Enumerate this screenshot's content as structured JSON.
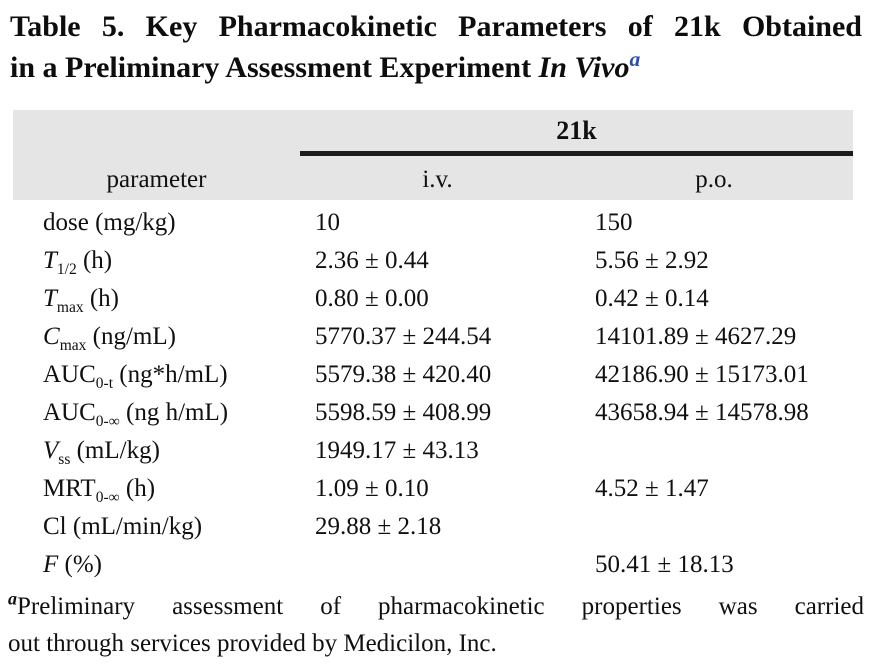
{
  "title": {
    "line1": "Table 5. Key Pharmacokinetic Parameters of 21k Obtained",
    "line2_plain": "in a Preliminary Assessment Experiment ",
    "line2_italic": "In Vivo",
    "footnote_marker": "a",
    "footnote_marker_color": "#2b50a8"
  },
  "table": {
    "group_header": "21k",
    "columns": [
      "parameter",
      "i.v.",
      "p.o."
    ],
    "header_bg": "#e5e5e5",
    "rule_color": "#1c1c1c",
    "rows": [
      {
        "param": {
          "text": "dose",
          "italic": false,
          "sub": "",
          "unit": "(mg/kg)"
        },
        "iv": "10",
        "po": "150"
      },
      {
        "param": {
          "text": "T",
          "italic": true,
          "sub": "1/2",
          "unit": "(h)"
        },
        "iv": "2.36 ± 0.44",
        "po": "5.56 ± 2.92"
      },
      {
        "param": {
          "text": "T",
          "italic": true,
          "sub": "max",
          "unit": "(h)"
        },
        "iv": "0.80 ± 0.00",
        "po": "0.42 ± 0.14"
      },
      {
        "param": {
          "text": "C",
          "italic": true,
          "sub": "max",
          "unit": "(ng/mL)"
        },
        "iv": "5770.37 ± 244.54",
        "po": "14101.89 ± 4627.29"
      },
      {
        "param": {
          "text": "AUC",
          "italic": false,
          "sub": "0-t",
          "unit": "(ng*h/mL)"
        },
        "iv": "5579.38 ± 420.40",
        "po": "42186.90 ± 15173.01"
      },
      {
        "param": {
          "text": "AUC",
          "italic": false,
          "sub": "0-∞",
          "unit": "(ng h/mL)"
        },
        "iv": "5598.59 ± 408.99",
        "po": "43658.94 ± 14578.98"
      },
      {
        "param": {
          "text": "V",
          "italic": true,
          "sub": "ss",
          "unit": "(mL/kg)"
        },
        "iv": "1949.17 ± 43.13",
        "po": ""
      },
      {
        "param": {
          "text": "MRT",
          "italic": false,
          "sub": "0-∞",
          "unit": "(h)"
        },
        "iv": "1.09 ± 0.10",
        "po": "4.52 ± 1.47"
      },
      {
        "param": {
          "text": "Cl",
          "italic": false,
          "sub": "",
          "unit": "(mL/min/kg)"
        },
        "iv": "29.88 ± 2.18",
        "po": ""
      },
      {
        "param": {
          "text": "F",
          "italic": true,
          "sub": "",
          "unit": "(%)"
        },
        "iv": "",
        "po": "50.41 ± 18.13"
      }
    ]
  },
  "footnote": {
    "marker": "a",
    "line1": "Preliminary assessment of pharmacokinetic properties was carried",
    "line2": "out through services provided by Medicilon, Inc."
  }
}
